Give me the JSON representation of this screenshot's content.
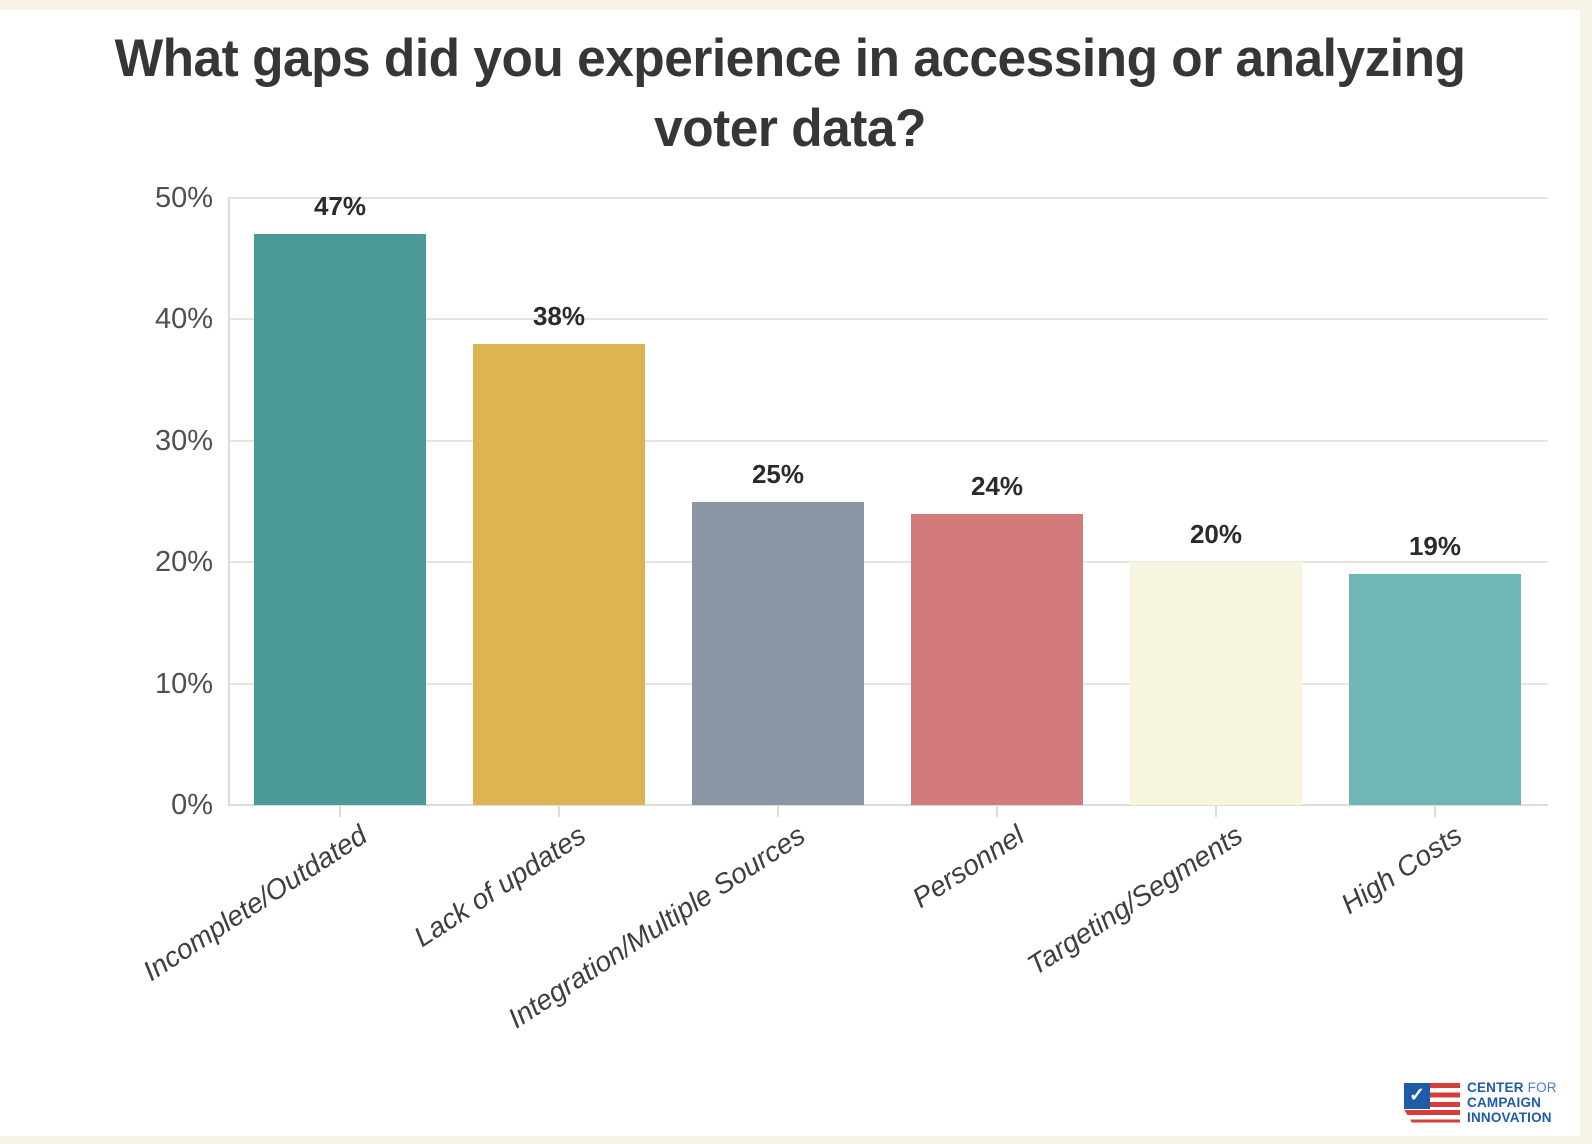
{
  "page": {
    "background_color": "#f7f3e6",
    "panel_color": "#ffffff"
  },
  "title": {
    "lines": [
      "What gaps did you experience in accessing or analyzing",
      "voter data?"
    ],
    "color": "#363636"
  },
  "chart_data": {
    "type": "bar",
    "title": "What gaps did you experience in accessing or analyzing voter data?",
    "categories": [
      "Incomplete/Outdated",
      "Lack of updates",
      "Integration/Multiple Sources",
      "Personnel",
      "Targeting/Segments",
      "High Costs"
    ],
    "values": [
      47,
      38,
      25,
      24,
      20,
      19
    ],
    "value_labels": [
      "47%",
      "38%",
      "25%",
      "24%",
      "20%",
      "19%"
    ],
    "bar_colors": [
      "#4a9a98",
      "#ddb452",
      "#8b96a4",
      "#d37a7a",
      "#f7f5df",
      "#6fb7b4"
    ],
    "xlabel": "",
    "ylabel": "",
    "ylim": [
      0,
      50
    ],
    "yticks": [
      0,
      10,
      20,
      30,
      40,
      50
    ],
    "ytick_labels": [
      "0%",
      "10%",
      "20%",
      "30%",
      "40%",
      "50%"
    ],
    "grid": true,
    "legend": false
  },
  "styles": {
    "grid_color": "#e7e5e0",
    "axis_color": "#dedcd6",
    "ytick_color": "#4f4f4f",
    "value_label_color": "#2b2b2b",
    "xtick_color": "#3e3e3e"
  },
  "logo": {
    "line1_bold": "CENTER",
    "line1_light": "FOR",
    "line2": "CAMPAIGN",
    "line3": "INNOVATION",
    "check_glyph": "✓",
    "text_color": "#1f5ca8",
    "light_text_color": "#4d7fbe",
    "flag_blue": "#1f5ca8",
    "flag_red": "#d63e3e",
    "flag_white": "#ffffff"
  }
}
